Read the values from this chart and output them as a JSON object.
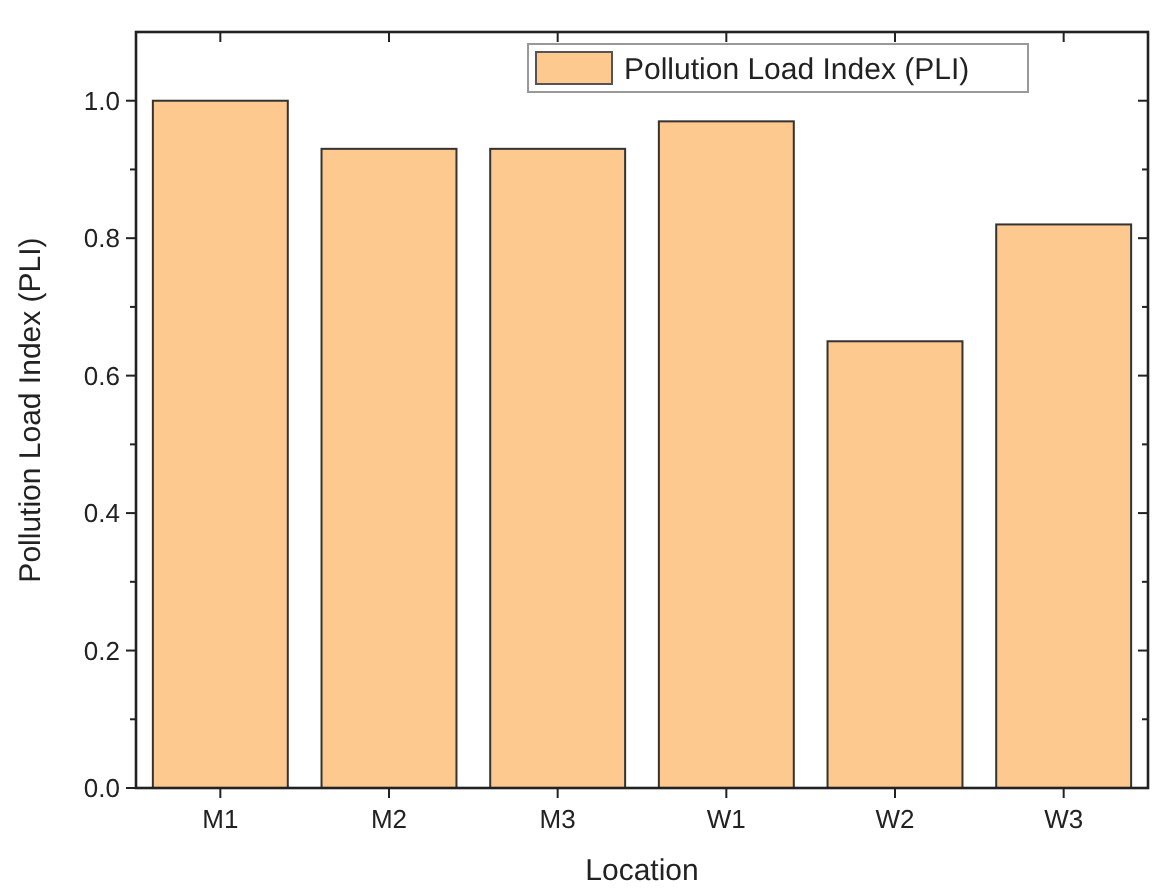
{
  "chart_data": {
    "type": "bar",
    "xlabel": "Location",
    "ylabel": "Pollution Load Index (PLI)",
    "categories": [
      "M1",
      "M2",
      "M3",
      "W1",
      "W2",
      "W3"
    ],
    "series": [
      {
        "name": "Pollution Load Index (PLI)",
        "color": "#fdc98f",
        "values": [
          1.0,
          0.93,
          0.93,
          0.97,
          0.65,
          0.82
        ]
      }
    ],
    "ylim": [
      0,
      1.1
    ],
    "yticks": [
      {
        "value": 0,
        "label": "0.0"
      },
      {
        "value": 0.2,
        "label": "0.2"
      },
      {
        "value": 0.4,
        "label": "0.4"
      },
      {
        "value": 0.6,
        "label": "0.6"
      },
      {
        "value": 0.8,
        "label": "0.8"
      },
      {
        "value": 1,
        "label": "1.0"
      }
    ],
    "legend": "top right",
    "grid": false
  }
}
